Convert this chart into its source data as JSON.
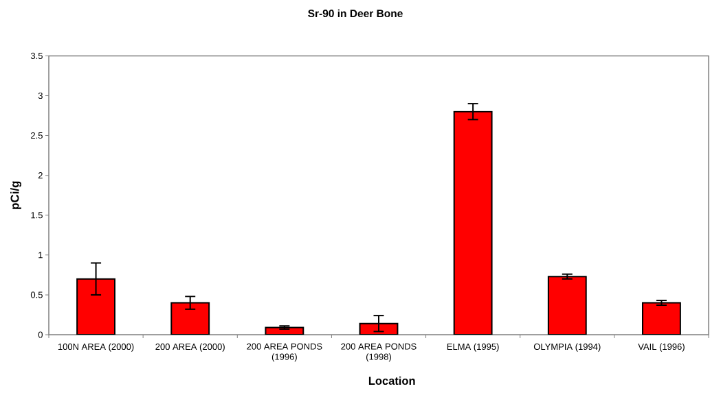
{
  "chart_data": {
    "type": "bar",
    "title": "Sr-90 in Deer Bone",
    "xlabel": "Location",
    "ylabel": "pCi/g",
    "categories": [
      "100N AREA (2000)",
      "200 AREA (2000)",
      "200 AREA PONDS (1996)",
      "200 AREA PONDS (1998)",
      "ELMA (1995)",
      "OLYMPIA (1994)",
      "VAIL (1996)"
    ],
    "values": [
      0.7,
      0.4,
      0.09,
      0.14,
      2.8,
      0.73,
      0.4
    ],
    "errors": [
      0.2,
      0.08,
      0.02,
      0.1,
      0.1,
      0.03,
      0.03
    ],
    "color": "#ff0000",
    "ylim": [
      0,
      3.5
    ],
    "yticks": [
      0,
      0.5,
      1,
      1.5,
      2,
      2.5,
      3,
      3.5
    ]
  }
}
